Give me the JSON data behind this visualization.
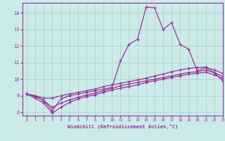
{
  "xlabel": "Windchill (Refroidissement éolien,°C)",
  "xlim": [
    -0.5,
    23
  ],
  "ylim": [
    7.8,
    14.6
  ],
  "bg_color": "#cceae8",
  "grid_color": "#aad4d2",
  "line_color": "#993399",
  "x_hours": [
    0,
    1,
    2,
    3,
    4,
    5,
    6,
    7,
    8,
    9,
    10,
    11,
    12,
    13,
    14,
    15,
    16,
    17,
    18,
    19,
    20,
    21,
    22,
    23
  ],
  "line1": [
    9.1,
    9.0,
    8.7,
    8.1,
    8.8,
    9.0,
    9.1,
    9.2,
    9.3,
    9.4,
    9.5,
    11.1,
    12.1,
    12.4,
    14.35,
    14.3,
    13.0,
    13.4,
    12.1,
    11.8,
    10.5,
    10.7,
    10.4,
    9.9
  ],
  "line2": [
    9.1,
    9.0,
    8.85,
    8.85,
    9.0,
    9.1,
    9.2,
    9.3,
    9.4,
    9.55,
    9.65,
    9.75,
    9.85,
    9.95,
    10.05,
    10.2,
    10.3,
    10.45,
    10.55,
    10.65,
    10.7,
    10.72,
    10.55,
    10.35
  ],
  "line3": [
    9.1,
    8.85,
    8.55,
    7.95,
    8.3,
    8.6,
    8.8,
    8.95,
    9.05,
    9.2,
    9.35,
    9.45,
    9.55,
    9.65,
    9.8,
    9.9,
    10.0,
    10.1,
    10.2,
    10.3,
    10.35,
    10.42,
    10.25,
    10.05
  ],
  "line4": [
    9.1,
    8.95,
    8.7,
    8.3,
    8.55,
    8.75,
    8.9,
    9.05,
    9.15,
    9.3,
    9.45,
    9.6,
    9.7,
    9.8,
    9.9,
    10.0,
    10.1,
    10.2,
    10.3,
    10.4,
    10.45,
    10.55,
    10.38,
    10.18
  ],
  "yticks": [
    8,
    9,
    10,
    11,
    12,
    13,
    14
  ],
  "xticks": [
    0,
    1,
    2,
    3,
    4,
    5,
    6,
    7,
    8,
    9,
    10,
    11,
    12,
    13,
    14,
    15,
    16,
    17,
    18,
    19,
    20,
    21,
    22,
    23
  ]
}
